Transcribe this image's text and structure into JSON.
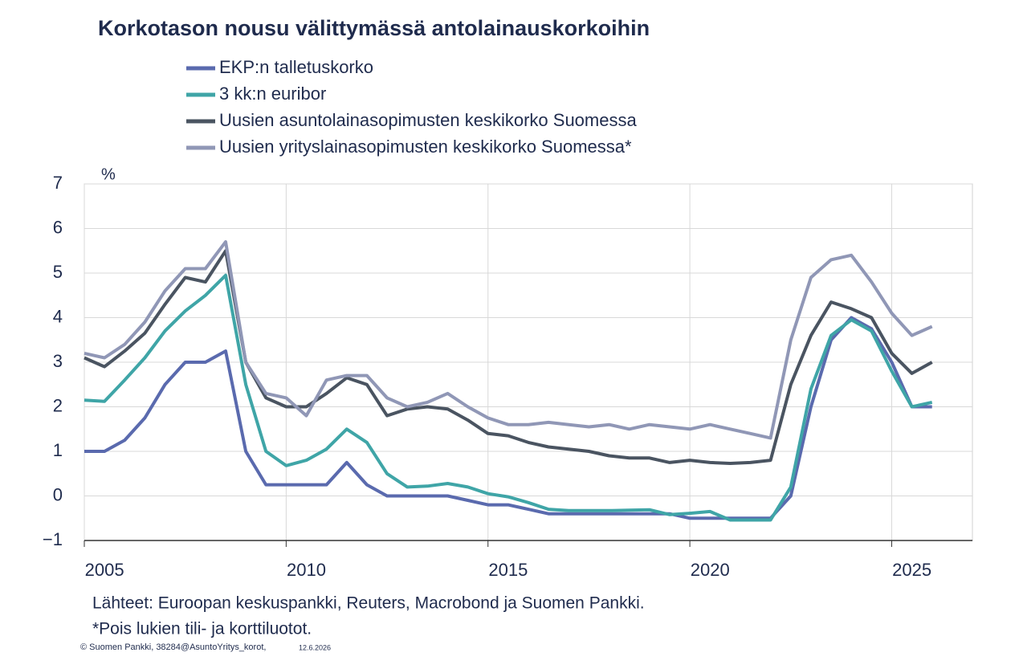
{
  "chart_data": {
    "type": "line",
    "title": "Korkotason nousu välittymässä antolainauskorkoihin",
    "y_unit": "%",
    "source": "Lähteet: Euroopan keskuspankki, Reuters, Macrobond ja Suomen Pankki.",
    "note": "*Pois lukien tili- ja korttiluotot.",
    "credit": "© Suomen Pankki, 38284@AsuntoYritys_korot,",
    "date": "12.6.2026",
    "x": [
      2005,
      2005.5,
      2006,
      2006.5,
      2007,
      2007.5,
      2008,
      2008.5,
      2009,
      2009.5,
      2010,
      2010.5,
      2011,
      2011.5,
      2012,
      2012.5,
      2013,
      2013.5,
      2014,
      2014.5,
      2015,
      2015.5,
      2016,
      2016.5,
      2017,
      2017.5,
      2018,
      2018.5,
      2019,
      2019.5,
      2020,
      2020.5,
      2021,
      2021.5,
      2022,
      2022.5,
      2023,
      2023.5,
      2024,
      2024.5,
      2025,
      2025.5,
      2026
    ],
    "xlim": [
      2005,
      2027
    ],
    "xticks": [
      2005,
      2010,
      2015,
      2020,
      2025
    ],
    "ylim": [
      -1,
      7
    ],
    "yticks": [
      {
        "value": -1,
        "label": "−1"
      },
      0,
      1,
      2,
      3,
      4,
      5,
      6,
      7
    ],
    "grid": true,
    "series": [
      {
        "name": "EKP:n talletuskorko",
        "color": "#5a6aae",
        "values": [
          1,
          1,
          1.25,
          1.75,
          2.5,
          3,
          3,
          3.25,
          1,
          0.25,
          0.25,
          0.25,
          0.25,
          0.75,
          0.25,
          0,
          0,
          0,
          0,
          -0.1,
          -0.2,
          -0.2,
          -0.3,
          -0.4,
          -0.4,
          -0.4,
          -0.4,
          -0.4,
          -0.4,
          -0.4,
          -0.5,
          -0.5,
          -0.5,
          -0.5,
          -0.5,
          0,
          2,
          3.5,
          4,
          3.75,
          3,
          2,
          2
        ]
      },
      {
        "name": "3 kk:n euribor",
        "color": "#3fa5a7",
        "values": [
          2.15,
          2.12,
          2.6,
          3.1,
          3.7,
          4.15,
          4.5,
          4.95,
          2.5,
          1,
          0.68,
          0.8,
          1.05,
          1.5,
          1.2,
          0.5,
          0.2,
          0.22,
          0.28,
          0.2,
          0.05,
          -0.02,
          -0.15,
          -0.3,
          -0.33,
          -0.33,
          -0.33,
          -0.32,
          -0.31,
          -0.42,
          -0.39,
          -0.35,
          -0.54,
          -0.54,
          -0.54,
          0.2,
          2.4,
          3.6,
          3.95,
          3.7,
          2.8,
          2,
          2.1
        ]
      },
      {
        "name": "Uusien asuntolainasopimusten keskikorko Suomessa",
        "color": "#4a5461",
        "values": [
          3.1,
          2.9,
          3.25,
          3.65,
          4.3,
          4.9,
          4.8,
          5.5,
          3,
          2.2,
          2,
          2,
          2.3,
          2.65,
          2.5,
          1.8,
          1.95,
          2,
          1.95,
          1.7,
          1.4,
          1.35,
          1.2,
          1.1,
          1.05,
          1,
          0.9,
          0.85,
          0.85,
          0.75,
          0.8,
          0.75,
          0.73,
          0.75,
          0.8,
          2.5,
          3.6,
          4.35,
          4.2,
          4,
          3.2,
          2.75,
          3
        ]
      },
      {
        "name": "Uusien yrityslainasopimusten keskikorko Suomessa*",
        "color": "#9097b6",
        "values": [
          3.2,
          3.1,
          3.4,
          3.9,
          4.6,
          5.1,
          5.1,
          5.7,
          3,
          2.3,
          2.2,
          1.8,
          2.6,
          2.7,
          2.7,
          2.2,
          2,
          2.1,
          2.3,
          2,
          1.75,
          1.6,
          1.6,
          1.65,
          1.6,
          1.55,
          1.6,
          1.5,
          1.6,
          1.55,
          1.5,
          1.6,
          1.5,
          1.4,
          1.3,
          3.5,
          4.9,
          5.3,
          5.4,
          4.8,
          4.1,
          3.6,
          3.8
        ]
      }
    ]
  }
}
